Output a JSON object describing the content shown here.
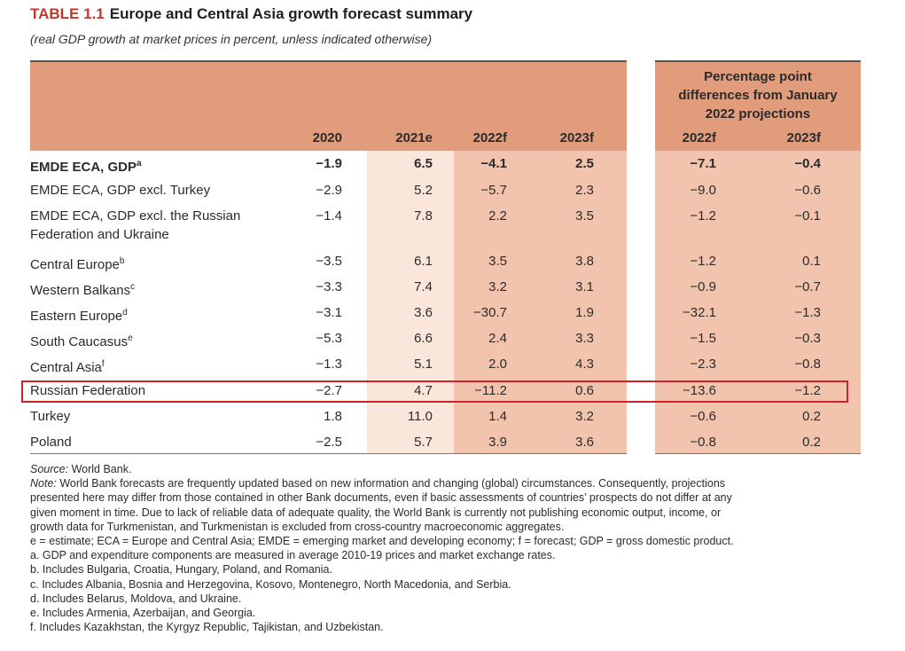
{
  "table": {
    "label": "TABLE 1.1",
    "title": "Europe and Central Asia growth forecast summary",
    "subtitle": "(real GDP growth at market prices in percent, unless indicated otherwise)",
    "diff_header": [
      "Percentage point",
      "differences from January",
      "2022 projections"
    ],
    "columns": [
      "2020",
      "2021e",
      "2022f",
      "2023f",
      "2022f",
      "2023f"
    ],
    "rows": [
      {
        "label": "EMDE ECA, GDP",
        "sup": "a",
        "values": [
          "−1.9",
          "6.5",
          "−4.1",
          "2.5",
          "−7.1",
          "−0.4"
        ]
      },
      {
        "label": "EMDE ECA, GDP excl. Turkey",
        "sup": "",
        "values": [
          "−2.9",
          "5.2",
          "−5.7",
          "2.3",
          "−9.0",
          "−0.6"
        ]
      },
      {
        "label": "EMDE ECA, GDP excl. the Russian",
        "label2": "Federation and Ukraine",
        "sup": "",
        "values": [
          "−1.4",
          "7.8",
          "2.2",
          "3.5",
          "−1.2",
          "−0.1"
        ]
      },
      {
        "label": "Central Europe",
        "sup": "b",
        "values": [
          "−3.5",
          "6.1",
          "3.5",
          "3.8",
          "−1.2",
          "0.1"
        ]
      },
      {
        "label": "Western Balkans",
        "sup": "c",
        "values": [
          "−3.3",
          "7.4",
          "3.2",
          "3.1",
          "−0.9",
          "−0.7"
        ]
      },
      {
        "label": "Eastern Europe",
        "sup": "d",
        "values": [
          "−3.1",
          "3.6",
          "−30.7",
          "1.9",
          "−32.1",
          "−1.3"
        ]
      },
      {
        "label": "South Caucasus",
        "sup": "e",
        "values": [
          "−5.3",
          "6.6",
          "2.4",
          "3.3",
          "−1.5",
          "−0.3"
        ]
      },
      {
        "label": "Central Asia",
        "sup": "f",
        "values": [
          "−1.3",
          "5.1",
          "2.0",
          "4.3",
          "−2.3",
          "−0.8"
        ]
      },
      {
        "label": "Russian Federation",
        "sup": "",
        "values": [
          "−2.7",
          "4.7",
          "−11.2",
          "0.6",
          "−13.6",
          "−1.2"
        ]
      },
      {
        "label": "Turkey",
        "sup": "",
        "values": [
          "1.8",
          "11.0",
          "1.4",
          "3.2",
          "−0.6",
          "0.2"
        ]
      },
      {
        "label": "Poland",
        "sup": "",
        "values": [
          "−2.5",
          "5.7",
          "3.9",
          "3.6",
          "−0.8",
          "0.2"
        ]
      }
    ]
  },
  "notes": {
    "source_label": "Source:",
    "source_text": " World Bank.",
    "note_label": "Note:",
    "note_lines": [
      " World Bank forecasts are frequently updated based on new information and changing (global) circumstances. Consequently, projections",
      "presented here may differ from those contained in other Bank documents, even if basic assessments of countries’ prospects do not differ at any",
      "given moment in time. Due to lack of reliable data of adequate quality, the World Bank is currently not publishing economic output, income, or",
      "growth data for Turkmenistan, and Turkmenistan is excluded from cross-country macroeconomic aggregates."
    ],
    "footnotes": [
      "e = estimate; ECA = Europe and Central Asia; EMDE = emerging market and developing economy; f = forecast; GDP = gross domestic product.",
      "a. GDP and expenditure components are measured in average 2010-19 prices and market exchange rates.",
      "b. Includes Bulgaria, Croatia, Hungary, Poland, and Romania.",
      "c. Includes Albania, Bosnia and Herzegovina, Kosovo, Montenegro, North Macedonia, and Serbia.",
      "d. Includes Belarus, Moldova, and Ukraine.",
      "e. Includes Armenia, Azerbaijan, and Georgia.",
      "f. Includes Kazakhstan, the Kyrgyz Republic, Tajikistan, and Uzbekistan."
    ]
  },
  "colors": {
    "header": "#e19c7c",
    "forecast_column": "#f2c4ae",
    "estimate_column": "#fbe6dc",
    "highlight_box": "#d3232a",
    "title_label": "#c0392b"
  }
}
